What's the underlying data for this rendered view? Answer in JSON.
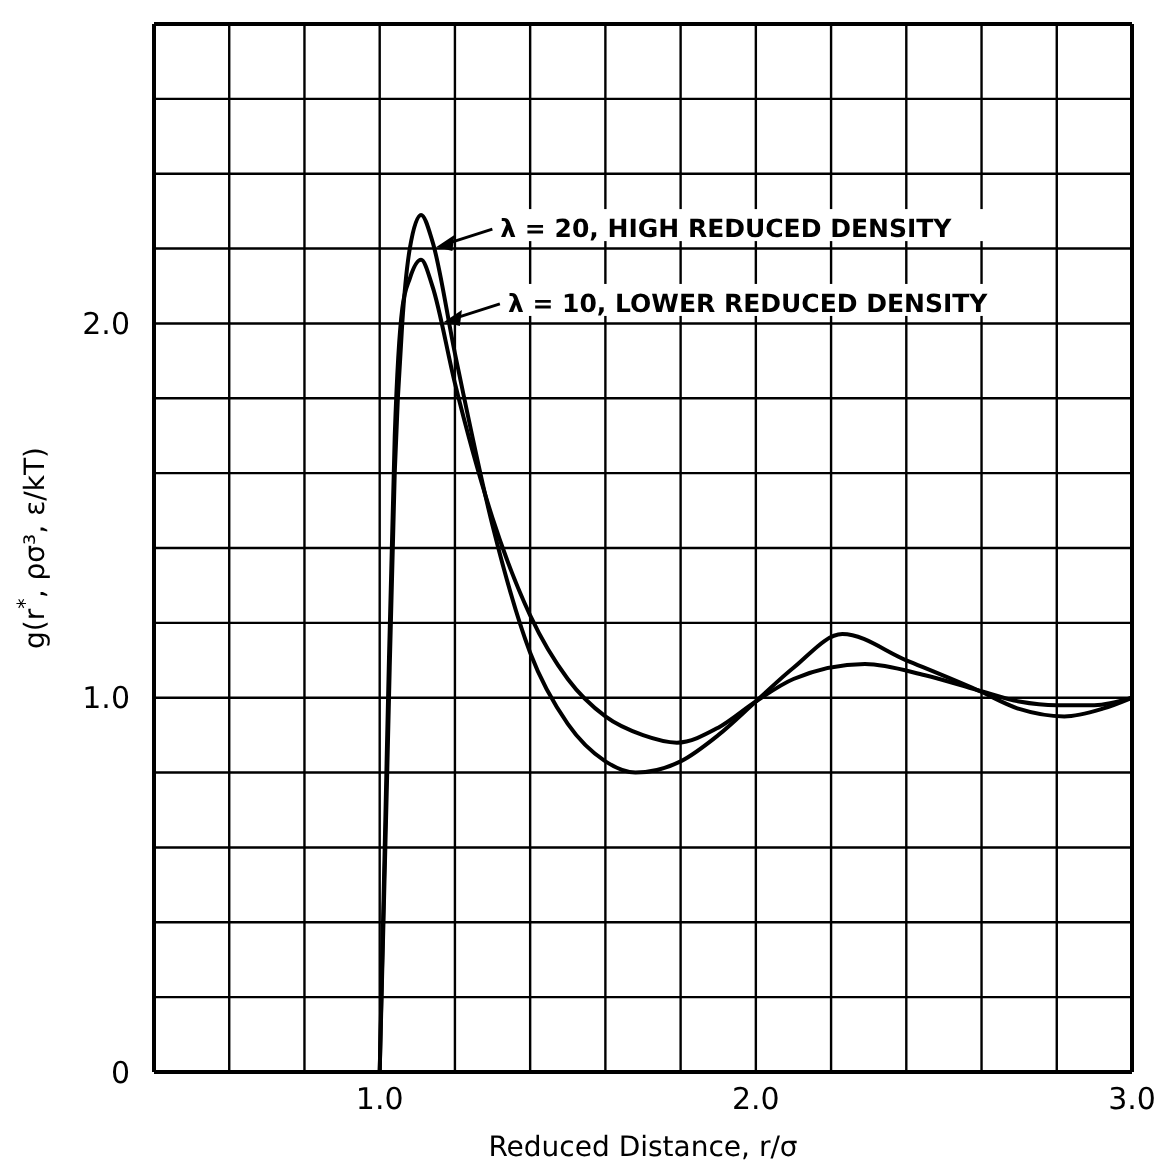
{
  "chart_data": {
    "type": "line",
    "xlabel": "Reduced Distance, r/σ",
    "ylabel": "g(r$^{*}$, ρσ³, ε/kT)",
    "xlim": [
      0.4,
      3.0
    ],
    "ylim": [
      0,
      2.8
    ],
    "xticks": [
      {
        "value": 0.4,
        "label": null
      },
      {
        "value": 0.6,
        "label": null
      },
      {
        "value": 0.8,
        "label": null
      },
      {
        "value": 1,
        "label": "1.0"
      },
      {
        "value": 1.2,
        "label": null
      },
      {
        "value": 1.4,
        "label": null
      },
      {
        "value": 1.6,
        "label": null
      },
      {
        "value": 1.8,
        "label": null
      },
      {
        "value": 2,
        "label": "2.0"
      },
      {
        "value": 2.2,
        "label": null
      },
      {
        "value": 2.4,
        "label": null
      },
      {
        "value": 2.6,
        "label": null
      },
      {
        "value": 2.8,
        "label": null
      },
      {
        "value": 3,
        "label": "3.0"
      }
    ],
    "yticks": [
      0,
      {
        "value": 0.2,
        "label": null
      },
      {
        "value": 0.4,
        "label": null
      },
      {
        "value": 0.6,
        "label": null
      },
      {
        "value": 0.8,
        "label": null
      },
      {
        "value": 1,
        "label": "1.0"
      },
      {
        "value": 1.2,
        "label": null
      },
      {
        "value": 1.4,
        "label": null
      },
      {
        "value": 1.6,
        "label": null
      },
      {
        "value": 1.8,
        "label": null
      },
      {
        "value": 2,
        "label": "2.0"
      },
      {
        "value": 2.2,
        "label": null
      },
      {
        "value": 2.4,
        "label": null
      },
      {
        "value": 2.6,
        "label": null
      },
      {
        "value": 2.8,
        "label": null
      }
    ],
    "grid": true,
    "marker": "none",
    "line_style": "solid",
    "series": [
      {
        "color": "#000000",
        "x": [
          1.0,
          1.02,
          1.04,
          1.06,
          1.08,
          1.11,
          1.14,
          1.2,
          1.3,
          1.4,
          1.5,
          1.6,
          1.68,
          1.8,
          1.9,
          2.0,
          2.1,
          2.23,
          2.4,
          2.59,
          2.7,
          2.82,
          2.92,
          3.0
        ],
        "values": [
          0,
          0.8,
          1.6,
          2.0,
          2.2,
          2.29,
          2.22,
          1.92,
          1.46,
          1.12,
          0.93,
          0.83,
          0.8,
          0.83,
          0.9,
          0.99,
          1.08,
          1.17,
          1.1,
          1.02,
          0.97,
          0.95,
          0.97,
          1.0
        ]
      },
      {
        "color": "#000000",
        "x": [
          1.0,
          1.02,
          1.04,
          1.06,
          1.08,
          1.11,
          1.14,
          1.2,
          1.3,
          1.4,
          1.5,
          1.6,
          1.7,
          1.79,
          1.9,
          2.0,
          2.1,
          2.29,
          2.45,
          2.59,
          2.7,
          2.8,
          2.9,
          3.0
        ],
        "values": [
          0,
          0.9,
          1.7,
          2.04,
          2.12,
          2.17,
          2.1,
          1.84,
          1.48,
          1.22,
          1.05,
          0.95,
          0.9,
          0.88,
          0.92,
          0.99,
          1.05,
          1.09,
          1.06,
          1.02,
          0.99,
          0.98,
          0.98,
          1.0
        ]
      }
    ],
    "annotations": [
      {
        "text": "λ = 20, HIGH REDUCED DENSITY",
        "x": 1.14,
        "y": 2.22
      },
      {
        "text": "λ = 10, LOWER REDUCED DENSITY",
        "x": 1.16,
        "y": 2.02
      }
    ]
  }
}
